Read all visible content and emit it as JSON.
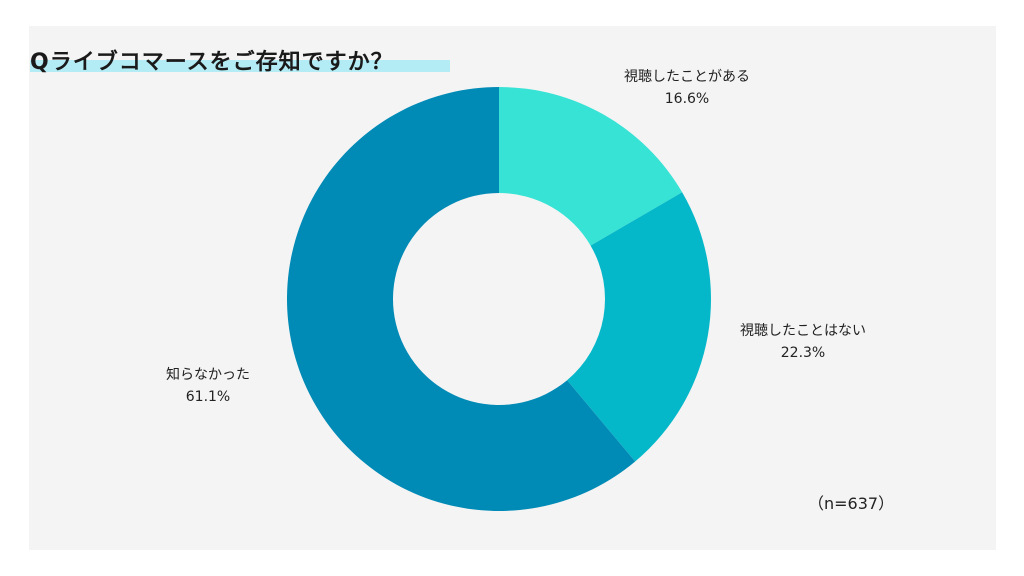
{
  "title": "Qライブコマースをご存知ですか？",
  "sample_note": "（n=637）",
  "chart_data": {
    "type": "pie",
    "style": "donut",
    "categories": [
      "視聴したことがある",
      "視聴したことはない",
      "知らなかった"
    ],
    "values": [
      16.6,
      22.3,
      61.1
    ],
    "value_labels": [
      "16.6%",
      "22.3%",
      "61.1%"
    ],
    "colors": [
      "#37e3d5",
      "#05b8c9",
      "#008ab6"
    ],
    "start": "12 o'clock",
    "direction": "clockwise"
  }
}
